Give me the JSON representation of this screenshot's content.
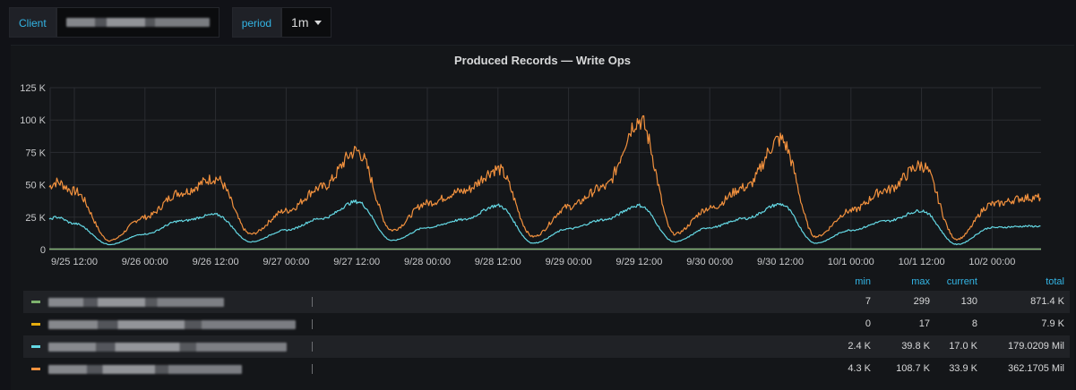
{
  "variables": {
    "client": {
      "label": "Client"
    },
    "period": {
      "label": "period",
      "value": "1m"
    }
  },
  "panel": {
    "title": "Produced Records — Write Ops"
  },
  "chart_data": {
    "type": "line",
    "title": "Produced Records — Write Ops",
    "ylim": [
      0,
      125000
    ],
    "y_ticks": [
      "0",
      "25 K",
      "50 K",
      "75 K",
      "100 K",
      "125 K"
    ],
    "x_ticks": [
      "9/25 12:00",
      "9/26 00:00",
      "9/26 12:00",
      "9/27 00:00",
      "9/27 12:00",
      "9/28 00:00",
      "9/28 12:00",
      "9/29 00:00",
      "9/29 12:00",
      "9/30 00:00",
      "9/30 12:00",
      "10/1 00:00",
      "10/1 12:00",
      "10/2 00:00"
    ],
    "grid": true,
    "series": [
      {
        "color": "#f2913e",
        "x": [
          "9/25 06:00",
          "9/25 09:00",
          "9/25 12:00",
          "9/25 18:00",
          "9/26 00:00",
          "9/26 06:00",
          "9/26 12:00",
          "9/26 18:00",
          "9/27 00:00",
          "9/27 06:00",
          "9/27 12:00",
          "9/27 18:00",
          "9/28 00:00",
          "9/28 06:00",
          "9/28 12:00",
          "9/28 18:00",
          "9/29 00:00",
          "9/29 06:00",
          "9/29 12:00",
          "9/29 18:00",
          "9/30 00:00",
          "9/30 06:00",
          "9/30 12:00",
          "9/30 18:00",
          "10/1 00:00",
          "10/1 06:00",
          "10/1 12:00",
          "10/1 18:00",
          "10/2 00:00",
          "10/2 06:00"
        ],
        "values": [
          42000,
          52000,
          45000,
          7000,
          25000,
          44000,
          55000,
          12000,
          30000,
          48000,
          76000,
          15000,
          36000,
          45000,
          62000,
          10000,
          33000,
          48000,
          100000,
          12000,
          32000,
          48000,
          85000,
          10000,
          30000,
          46000,
          65000,
          8000,
          35000,
          40000
        ]
      },
      {
        "color": "#64d8e4",
        "x": [
          "9/25 06:00",
          "9/25 09:00",
          "9/25 12:00",
          "9/25 18:00",
          "9/26 00:00",
          "9/26 06:00",
          "9/26 12:00",
          "9/26 18:00",
          "9/27 00:00",
          "9/27 06:00",
          "9/27 12:00",
          "9/27 18:00",
          "9/28 00:00",
          "9/28 06:00",
          "9/28 12:00",
          "9/28 18:00",
          "9/29 00:00",
          "9/29 06:00",
          "9/29 12:00",
          "9/29 18:00",
          "9/30 00:00",
          "9/30 06:00",
          "9/30 12:00",
          "9/30 18:00",
          "10/1 00:00",
          "10/1 06:00",
          "10/1 12:00",
          "10/1 18:00",
          "10/2 00:00",
          "10/2 06:00"
        ],
        "values": [
          19000,
          25000,
          20000,
          4000,
          12000,
          22000,
          27000,
          6000,
          15000,
          24000,
          37000,
          7000,
          17000,
          23000,
          34000,
          5000,
          16000,
          23000,
          34000,
          6000,
          17000,
          24000,
          35000,
          5000,
          15000,
          22000,
          30000,
          4000,
          17000,
          18000
        ]
      },
      {
        "color": "#a272cc",
        "values": [
          0
        ]
      },
      {
        "color": "#7eb26d",
        "values": [
          0
        ]
      }
    ]
  },
  "legend": {
    "columns": {
      "min": "min",
      "max": "max",
      "current": "current",
      "total": "total"
    },
    "rows": [
      {
        "color": "#7eb26d",
        "min": "7",
        "max": "299",
        "current": "130",
        "total": "871.4 K"
      },
      {
        "color": "#e5ac0e",
        "min": "0",
        "max": "17",
        "current": "8",
        "total": "7.9 K"
      },
      {
        "color": "#64d8e4",
        "min": "2.4 K",
        "max": "39.8 K",
        "current": "17.0 K",
        "total": "179.0209 Mil"
      },
      {
        "color": "#f2913e",
        "min": "4.3 K",
        "max": "108.7 K",
        "current": "33.9 K",
        "total": "362.1705 Mil"
      }
    ]
  }
}
